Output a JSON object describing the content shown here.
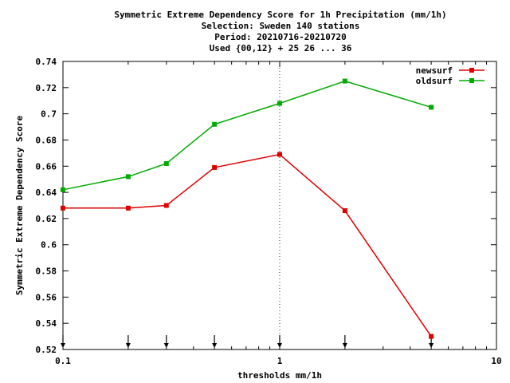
{
  "chart_data": {
    "type": "line",
    "title_lines": [
      "Symmetric Extreme Dependency Score  for 1h Precipitation (mm/1h)",
      "Selection: Sweden    140 stations",
      "Period: 20210716-20210720",
      "Used {00,12} + 25 26 ... 36"
    ],
    "xlabel": "thresholds mm/1h",
    "ylabel": "Symmetric Extreme Dependency Score",
    "xscale": "log",
    "xlim": [
      0.1,
      10
    ],
    "ylim": [
      0.52,
      0.74
    ],
    "x_tick_labels": [
      "0.1",
      "1",
      "10"
    ],
    "y_tick_labels": [
      "0.52",
      "0.54",
      "0.56",
      "0.58",
      "0.6",
      "0.62",
      "0.64",
      "0.66",
      "0.68",
      "0.7",
      "0.72",
      "0.74"
    ],
    "threshold_markers": [
      0.1,
      0.2,
      0.3,
      0.5,
      1,
      2,
      5
    ],
    "legend_position": "top-right",
    "series": [
      {
        "name": "newsurf",
        "color": "#dd0000",
        "x": [
          0.1,
          0.2,
          0.3,
          0.5,
          1,
          2,
          5
        ],
        "y": [
          0.628,
          0.628,
          0.63,
          0.659,
          0.669,
          0.626,
          0.53
        ]
      },
      {
        "name": "oldsurf",
        "color": "#00aa00",
        "x": [
          0.1,
          0.2,
          0.3,
          0.5,
          1,
          2,
          5
        ],
        "y": [
          0.642,
          0.652,
          0.662,
          0.692,
          0.708,
          0.725,
          0.705
        ]
      }
    ]
  }
}
